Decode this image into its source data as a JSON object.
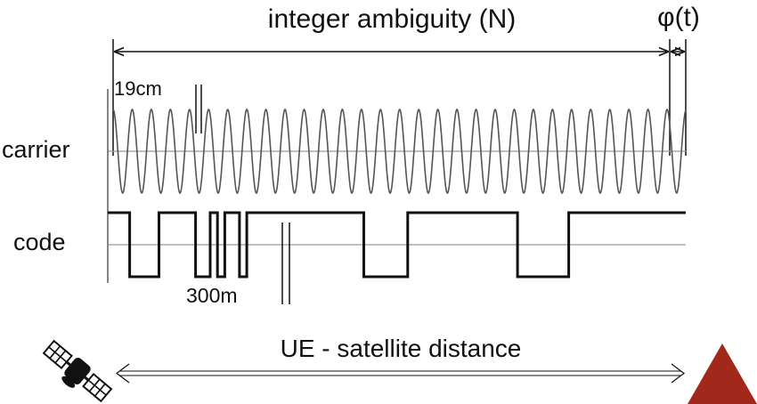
{
  "title": "integer ambiguity (N)",
  "phase_label": "φ(t)",
  "wavelength_label": "19cm",
  "code_chip_label": "300m",
  "distance_label": "UE - satellite distance",
  "signals": [
    {
      "id": "carrier",
      "label": "carrier"
    },
    {
      "id": "code",
      "label": "code"
    }
  ],
  "code_bits": [
    1,
    1,
    1,
    0,
    0,
    0,
    0,
    1,
    1,
    1,
    1,
    1,
    0,
    0,
    1,
    0,
    1,
    1,
    0,
    1,
    1,
    1,
    1,
    1,
    1,
    1,
    1,
    1,
    1,
    1,
    1,
    1,
    1,
    1,
    1,
    0,
    0,
    0,
    0,
    0,
    0,
    1,
    1,
    1,
    1,
    1,
    1,
    1,
    1,
    1,
    1,
    1,
    1,
    1,
    1,
    1,
    0,
    0,
    0,
    0,
    0,
    0,
    0,
    1,
    1,
    1,
    1,
    1,
    1,
    1,
    1,
    1,
    1,
    1,
    1,
    1,
    1,
    1,
    1
  ],
  "icons": {
    "satellite": "satellite-icon",
    "receiver": "receiver-triangle-icon"
  },
  "colors": {
    "line": "#111111",
    "carrier": "#555555",
    "axis": "#9a9a9a",
    "receiver": "#a3281c"
  }
}
